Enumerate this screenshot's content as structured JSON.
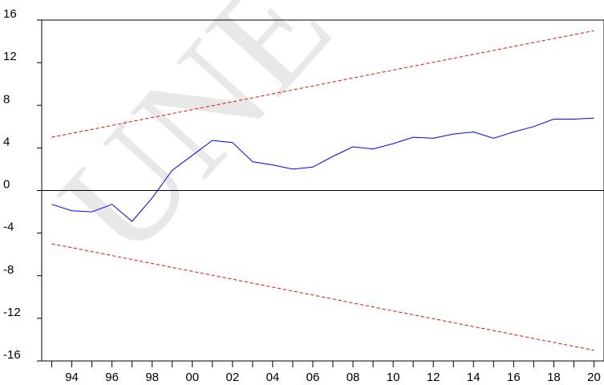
{
  "chart_data": {
    "type": "line",
    "title": "",
    "xlabel": "",
    "ylabel": "",
    "x": [
      1993,
      1994,
      1995,
      1996,
      1997,
      1998,
      1999,
      2000,
      2001,
      2002,
      2003,
      2004,
      2005,
      2006,
      2007,
      2008,
      2009,
      2010,
      2011,
      2012,
      2013,
      2014,
      2015,
      2016,
      2017,
      2018,
      2019,
      2020
    ],
    "xlim": [
      1992.5,
      2020.5
    ],
    "ylim": [
      -16,
      16
    ],
    "x_ticks": [
      "94",
      "96",
      "98",
      "00",
      "02",
      "04",
      "06",
      "08",
      "10",
      "12",
      "14",
      "16",
      "18",
      "20"
    ],
    "x_tick_years": [
      1994,
      1996,
      1998,
      2000,
      2002,
      2004,
      2006,
      2008,
      2010,
      2012,
      2014,
      2016,
      2018,
      2020
    ],
    "y_ticks": [
      "16",
      "12",
      "8",
      "4",
      "0",
      "-4",
      "-8",
      "-12",
      "-16"
    ],
    "y_tick_values": [
      16,
      12,
      8,
      4,
      0,
      -4,
      -8,
      -12,
      -16
    ],
    "grid": false,
    "zero_line": true,
    "series": [
      {
        "values": [
          -1.3,
          -1.9,
          -2.0,
          -1.3,
          -2.9,
          -0.7,
          1.9,
          3.3,
          4.7,
          4.5,
          2.7,
          2.4,
          2.0,
          2.2,
          3.2,
          4.1,
          3.9,
          4.4,
          5.0,
          4.9,
          5.3,
          5.5,
          4.9,
          5.5,
          6.0,
          6.7,
          6.7,
          6.8
        ],
        "color": "#0000ff",
        "style": "solid"
      },
      {
        "values": [
          5.0,
          5.37,
          5.74,
          6.11,
          6.48,
          6.85,
          7.22,
          7.59,
          7.96,
          8.33,
          8.7,
          9.07,
          9.44,
          9.81,
          10.19,
          10.56,
          10.93,
          11.3,
          11.67,
          12.04,
          12.41,
          12.78,
          13.15,
          13.52,
          13.89,
          14.26,
          14.63,
          15.0
        ],
        "color": "#ff0000",
        "style": "dashed"
      },
      {
        "values": [
          -5.0,
          -5.37,
          -5.74,
          -6.11,
          -6.48,
          -6.85,
          -7.22,
          -7.59,
          -7.96,
          -8.33,
          -8.7,
          -9.07,
          -9.44,
          -9.81,
          -10.19,
          -10.56,
          -10.93,
          -11.3,
          -11.67,
          -12.04,
          -12.41,
          -12.78,
          -13.15,
          -13.52,
          -13.89,
          -14.26,
          -14.63,
          -15.0
        ],
        "color": "#ff0000",
        "style": "dashed"
      }
    ]
  },
  "watermark": {
    "text": "UNE",
    "color": "#e8e8e8"
  }
}
